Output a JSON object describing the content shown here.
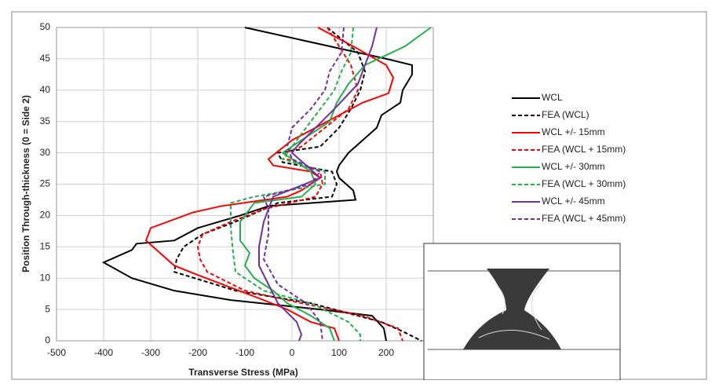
{
  "chart_data": {
    "type": "line",
    "xlabel": "Transverse Stress (MPa)",
    "ylabel": "Position Through-thickness (0 = Side 2)",
    "xlim": [
      -500,
      300
    ],
    "xticks": [
      -500,
      -400,
      -300,
      -200,
      -100,
      0,
      100,
      200
    ],
    "ylim": [
      0,
      50
    ],
    "yticks": [
      0,
      5,
      10,
      15,
      20,
      25,
      30,
      35,
      40,
      45,
      50
    ],
    "grid": true,
    "series": [
      {
        "name": "WCL",
        "color": "#000000",
        "dashed": false,
        "x": [
          -100,
          200,
          255,
          255,
          235,
          230,
          190,
          180,
          150,
          120,
          100,
          95,
          100,
          130,
          135,
          -50,
          -110,
          -200,
          -250,
          -330,
          -340,
          -400,
          -340,
          -250,
          -130,
          60,
          170,
          195,
          200
        ],
        "y": [
          50,
          45,
          44,
          42.5,
          40,
          38,
          36,
          34,
          32,
          30,
          28,
          27,
          26,
          24,
          22.5,
          21.5,
          20,
          18,
          16,
          15.5,
          14.5,
          12.5,
          10,
          8,
          6.5,
          5,
          4,
          2,
          0
        ]
      },
      {
        "name": "FEA (WCL)",
        "color": "#000000",
        "dashed": true,
        "x": [
          75,
          140,
          155,
          145,
          125,
          100,
          60,
          -30,
          -20,
          85,
          95,
          85,
          -30,
          -120,
          -190,
          -230,
          -245,
          -250,
          -120,
          40,
          190,
          235,
          275
        ],
        "y": [
          50,
          46,
          43,
          40,
          37,
          34,
          31,
          30,
          28.5,
          27,
          25,
          23,
          22,
          19,
          17,
          15,
          13,
          11,
          8,
          6,
          3,
          1.5,
          0
        ]
      },
      {
        "name": "WCL +/- 15mm",
        "color": "#ff0000",
        "dashed": false,
        "x": [
          55,
          130,
          200,
          215,
          205,
          150,
          100,
          50,
          0,
          -50,
          -40,
          40,
          60,
          20,
          -10,
          -150,
          -210,
          -300,
          -310,
          -280,
          -250,
          -200,
          -130,
          -60,
          -10,
          40,
          90,
          100
        ],
        "y": [
          50,
          47,
          44,
          42,
          39.5,
          38,
          36,
          34,
          32,
          29,
          28,
          27,
          26,
          24,
          23,
          21.5,
          20.5,
          18,
          16,
          14,
          12,
          10.5,
          8.5,
          6.5,
          5,
          3,
          2,
          0
        ]
      },
      {
        "name": "FEA (WCL + 15mm)",
        "color": "#ff0000",
        "dashed": true,
        "x": [
          75,
          125,
          140,
          120,
          70,
          20,
          -15,
          -10,
          60,
          65,
          50,
          -60,
          -130,
          -190,
          -200,
          -195,
          -180,
          -100,
          20,
          150,
          225,
          235
        ],
        "y": [
          50,
          44,
          40,
          37,
          34,
          31,
          30,
          29,
          27,
          25,
          23,
          21,
          19,
          17,
          15,
          13,
          11,
          8,
          6,
          4,
          2,
          0
        ]
      },
      {
        "name": "WCL +/- 30mm",
        "color": "#22b14c",
        "dashed": false,
        "x": [
          295,
          240,
          155,
          120,
          95,
          80,
          20,
          -20,
          40,
          50,
          20,
          -80,
          -110,
          -110,
          -90,
          -100,
          -80,
          -40,
          -10,
          40,
          80,
          90
        ],
        "y": [
          50,
          47,
          44,
          41,
          38,
          35,
          32,
          30,
          27,
          25,
          23,
          22,
          19,
          16,
          14,
          12,
          10,
          8,
          6,
          4,
          2,
          0
        ]
      },
      {
        "name": "FEA (WCL + 30mm)",
        "color": "#22b14c",
        "dashed": true,
        "x": [
          130,
          125,
          105,
          90,
          60,
          30,
          0,
          -20,
          70,
          70,
          -80,
          -130,
          -130,
          -125,
          -120,
          -60,
          40,
          120,
          145,
          145
        ],
        "y": [
          50,
          46,
          43,
          40,
          37,
          34,
          31,
          29,
          27,
          25,
          23,
          22,
          18,
          14,
          11,
          8,
          6,
          3,
          1,
          0
        ]
      },
      {
        "name": "WCL +/- 45mm",
        "color": "#7030a0",
        "dashed": false,
        "x": [
          180,
          170,
          160,
          140,
          90,
          50,
          10,
          0,
          30,
          60,
          -40,
          -50,
          -60,
          -70,
          -70,
          -50,
          -30,
          10,
          20,
          15
        ],
        "y": [
          50,
          47,
          45,
          41,
          37,
          34,
          31,
          30,
          28,
          26,
          23,
          21,
          19,
          15,
          12,
          9,
          6,
          3,
          1,
          0
        ]
      },
      {
        "name": "FEA (WCL + 45mm)",
        "color": "#7030a0",
        "dashed": true,
        "x": [
          110,
          105,
          80,
          70,
          40,
          0,
          -10,
          0,
          60,
          40,
          -60,
          -50,
          -50,
          -60,
          -30,
          30,
          60,
          65
        ],
        "y": [
          50,
          46,
          43,
          40,
          37,
          34,
          31,
          29,
          27,
          25,
          23,
          21,
          17,
          13,
          9,
          6,
          3,
          0
        ]
      }
    ]
  }
}
